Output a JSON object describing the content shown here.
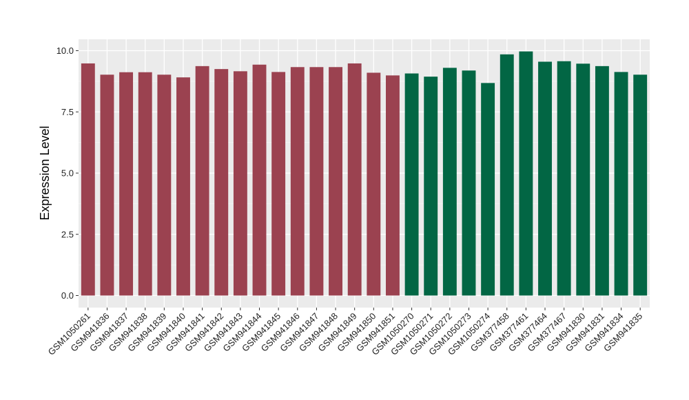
{
  "chart_data": {
    "type": "bar",
    "ylabel": "Expression Level",
    "xlabel": "",
    "ylim": [
      0,
      10.4
    ],
    "yticks": [
      0.0,
      2.5,
      5.0,
      7.5,
      10.0
    ],
    "ytick_labels": [
      "0.0",
      "2.5",
      "5.0",
      "7.5",
      "10.0"
    ],
    "grid": true,
    "panel_background": "#ebebeb",
    "categories": [
      "GSM1050261",
      "GSM941836",
      "GSM941837",
      "GSM941838",
      "GSM941839",
      "GSM941840",
      "GSM941841",
      "GSM941842",
      "GSM941843",
      "GSM941844",
      "GSM941845",
      "GSM941846",
      "GSM941847",
      "GSM941848",
      "GSM941849",
      "GSM941850",
      "GSM941851",
      "GSM1050270",
      "GSM1050271",
      "GSM1050272",
      "GSM1050273",
      "GSM1050274",
      "GSM377458",
      "GSM377461",
      "GSM377464",
      "GSM377467",
      "GSM941830",
      "GSM941831",
      "GSM941834",
      "GSM941835"
    ],
    "values": [
      9.48,
      9.02,
      9.12,
      9.12,
      9.02,
      8.91,
      9.37,
      9.25,
      9.16,
      9.43,
      9.13,
      9.33,
      9.33,
      9.33,
      9.48,
      9.1,
      8.99,
      9.07,
      8.94,
      9.3,
      9.19,
      8.68,
      9.85,
      9.97,
      9.55,
      9.57,
      9.47,
      9.37,
      9.13,
      9.02
    ],
    "groups": [
      {
        "color": "#9b4250",
        "indices": [
          0,
          16
        ]
      },
      {
        "color": "#026644",
        "indices": [
          17,
          29
        ]
      }
    ]
  }
}
